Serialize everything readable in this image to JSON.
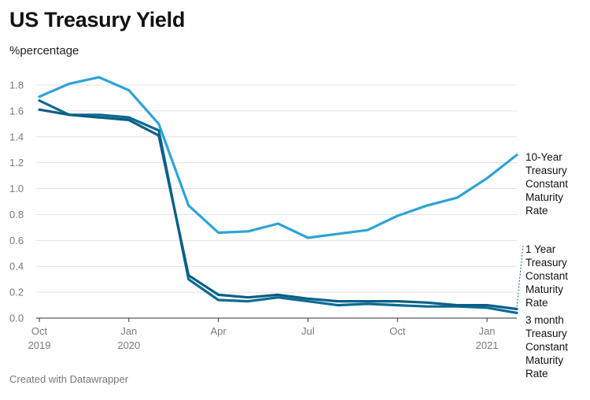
{
  "title": "US Treasury Yield",
  "subtitle": "%percentage",
  "footer": "Created with Datawrapper",
  "chart_data": {
    "type": "line",
    "title": "US Treasury Yield",
    "ylabel": "%percentage",
    "ylim": [
      0,
      1.8
    ],
    "yticks": [
      "1.8",
      "1.6",
      "1.4",
      "1.2",
      "1.0",
      "0.8",
      "0.6",
      "0.4",
      "0.2",
      "0.0"
    ],
    "x": [
      "2019-10",
      "2019-11",
      "2019-12",
      "2020-01",
      "2020-02",
      "2020-03",
      "2020-04",
      "2020-05",
      "2020-06",
      "2020-07",
      "2020-08",
      "2020-09",
      "2020-10",
      "2020-11",
      "2020-12",
      "2021-01",
      "2021-02"
    ],
    "xticks": [
      {
        "month": "2019-10",
        "label": "Oct",
        "year": "2019"
      },
      {
        "month": "2020-01",
        "label": "Jan",
        "year": "2020"
      },
      {
        "month": "2020-04",
        "label": "Apr",
        "year": ""
      },
      {
        "month": "2020-07",
        "label": "Jul",
        "year": ""
      },
      {
        "month": "2020-10",
        "label": "Oct",
        "year": ""
      },
      {
        "month": "2021-01",
        "label": "Jan",
        "year": "2021"
      }
    ],
    "grid": true,
    "series": [
      {
        "name": "10-Year Treasury Constant Maturity Rate",
        "label_lines": [
          "10-Year",
          "Treasury",
          "Constant",
          "Maturity",
          "Rate"
        ],
        "color": "#2ea3d6",
        "values": [
          1.71,
          1.81,
          1.86,
          1.76,
          1.5,
          0.87,
          0.66,
          0.67,
          0.73,
          0.62,
          0.65,
          0.68,
          0.79,
          0.87,
          0.93,
          1.08,
          1.26
        ]
      },
      {
        "name": "1 Year Treasury Constant Maturity Rate",
        "label_lines": [
          "1 Year",
          "Treasury",
          "Constant",
          "Maturity",
          "Rate"
        ],
        "color": "#0b5f87",
        "values": [
          1.61,
          1.57,
          1.55,
          1.53,
          1.41,
          0.33,
          0.18,
          0.16,
          0.18,
          0.15,
          0.13,
          0.13,
          0.13,
          0.12,
          0.1,
          0.1,
          0.07
        ]
      },
      {
        "name": "3 month Treasury Constant Maturity Rate",
        "label_lines": [
          "3 month",
          "Treasury",
          "Constant",
          "Maturity",
          "Rate"
        ],
        "color": "#0a6b95",
        "values": [
          1.68,
          1.57,
          1.57,
          1.55,
          1.45,
          0.3,
          0.14,
          0.13,
          0.16,
          0.13,
          0.1,
          0.11,
          0.1,
          0.09,
          0.09,
          0.08,
          0.04
        ]
      }
    ]
  }
}
